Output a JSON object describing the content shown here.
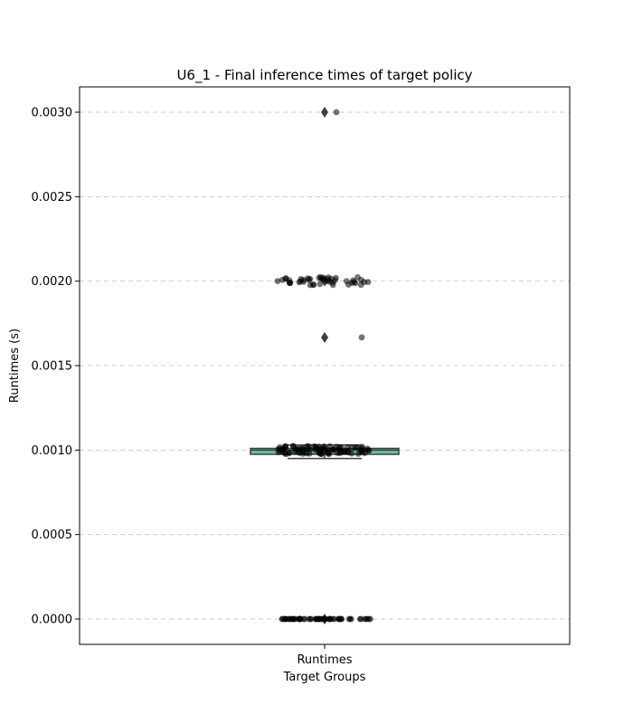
{
  "chart_data": {
    "type": "box",
    "title": "U6_1 - Final inference times of target policy",
    "xlabel": "Target Groups",
    "ylabel": "Runtimes (s)",
    "categories": [
      "Runtimes"
    ],
    "ylim": [
      -0.00015,
      0.00315
    ],
    "yticks": [
      0.0,
      0.0005,
      0.001,
      0.0015,
      0.002,
      0.0025,
      0.003
    ],
    "ytick_labels": [
      "0.0000",
      "0.0005",
      "0.0010",
      "0.0015",
      "0.0020",
      "0.0025",
      "0.0030"
    ],
    "grid": {
      "y": true,
      "style": "dashed"
    },
    "box": {
      "q1": 0.000975,
      "median": 0.001,
      "q3": 0.00101,
      "whisker_low": 0.00095,
      "whisker_high": 0.00103,
      "outliers": [
        0.0,
        0.001667,
        0.002,
        0.003
      ],
      "color": "#66c2a5"
    },
    "points": {
      "color": "#000000",
      "groups": [
        {
          "value": 0.0,
          "count": 60
        },
        {
          "value": 0.001,
          "count": 90
        },
        {
          "value": 0.001667,
          "count": 1
        },
        {
          "value": 0.002,
          "count": 45
        },
        {
          "value": 0.003,
          "count": 1
        }
      ]
    }
  }
}
